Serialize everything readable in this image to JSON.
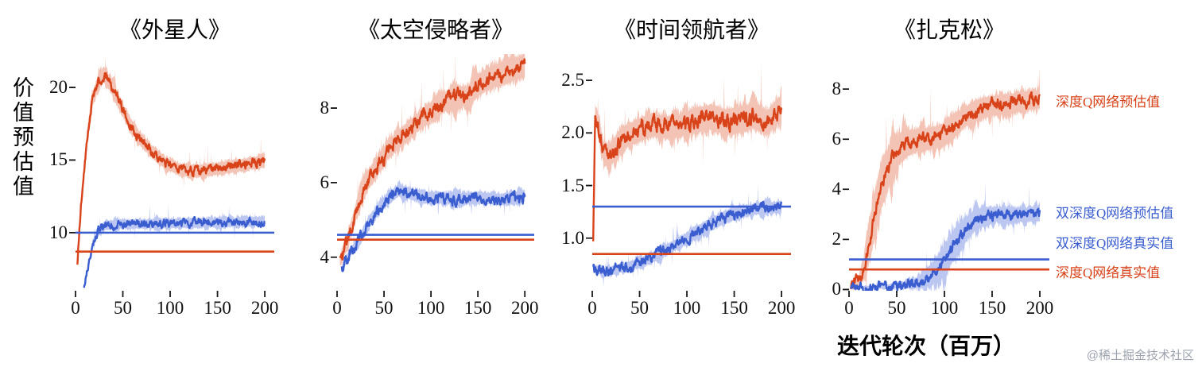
{
  "figure": {
    "ylabel": "价值预估值",
    "xlabel": "迭代轮次（百万）",
    "watermark": "@稀土掘金技术社区"
  },
  "colors": {
    "red": "#d8431a",
    "red_band": "rgba(221,86,45,0.35)",
    "blue": "#3a5dd0",
    "blue_band": "rgba(92,118,222,0.42)"
  },
  "legend": [
    {
      "label": "深度Q网络预估值",
      "color_key": "red"
    },
    {
      "label": "双深度Q网络预估值",
      "color_key": "blue"
    },
    {
      "label": "双深度Q网络真实值",
      "color_key": "blue"
    },
    {
      "label": "深度Q网络真实值",
      "color_key": "red"
    }
  ],
  "chart_data": [
    {
      "type": "line",
      "title": "《外星人》",
      "xlim": [
        0,
        210
      ],
      "ylim": [
        6.0,
        22.3
      ],
      "xticks": [
        0,
        50,
        100,
        150,
        200
      ],
      "xtick_labels": [
        "0",
        "50",
        "100",
        "150",
        "200"
      ],
      "yticks": [
        10,
        15,
        20
      ],
      "ytick_labels": [
        "10",
        "15",
        "20"
      ],
      "series": [
        {
          "name": "深度Q网络预估值",
          "color": "red",
          "jitter": 0.4,
          "points": [
            [
              2,
              8.0,
              0.3
            ],
            [
              6,
              12.0,
              0.6
            ],
            [
              12,
              16.5,
              0.8
            ],
            [
              18,
              19.2,
              0.9
            ],
            [
              25,
              20.5,
              1.0
            ],
            [
              30,
              20.9,
              1.0
            ],
            [
              38,
              20.1,
              1.0
            ],
            [
              50,
              18.4,
              0.9
            ],
            [
              65,
              16.7,
              0.9
            ],
            [
              80,
              15.6,
              0.85
            ],
            [
              95,
              14.8,
              0.8
            ],
            [
              110,
              14.35,
              0.8
            ],
            [
              130,
              14.2,
              0.8
            ],
            [
              150,
              14.4,
              0.8
            ],
            [
              170,
              14.6,
              0.8
            ],
            [
              200,
              14.9,
              0.8
            ]
          ]
        },
        {
          "name": "双深度Q网络预估值",
          "color": "blue",
          "jitter": 0.35,
          "points": [
            [
              9,
              6.2,
              0.2
            ],
            [
              13,
              7.6,
              0.35
            ],
            [
              18,
              9.2,
              0.5
            ],
            [
              24,
              10.1,
              0.55
            ],
            [
              32,
              10.5,
              0.6
            ],
            [
              50,
              10.6,
              0.6
            ],
            [
              80,
              10.6,
              0.6
            ],
            [
              120,
              10.65,
              0.6
            ],
            [
              160,
              10.7,
              0.6
            ],
            [
              200,
              10.8,
              0.6
            ]
          ]
        }
      ],
      "hlines": [
        {
          "name": "双深度Q网络真实值",
          "y": 10.0,
          "color": "blue"
        },
        {
          "name": "深度Q网络真实值",
          "y": 8.7,
          "color": "red"
        }
      ]
    },
    {
      "type": "line",
      "title": "《太空侵略者》",
      "xlim": [
        0,
        210
      ],
      "ylim": [
        3.1,
        9.45
      ],
      "xticks": [
        0,
        50,
        100,
        150,
        200
      ],
      "xtick_labels": [
        "0",
        "50",
        "100",
        "150",
        "200"
      ],
      "yticks": [
        4,
        6,
        8
      ],
      "ytick_labels": [
        "4",
        "6",
        "8"
      ],
      "series": [
        {
          "name": "深度Q网络预估值",
          "color": "red",
          "jitter": 0.22,
          "points": [
            [
              3,
              3.9,
              0.25
            ],
            [
              10,
              4.35,
              0.35
            ],
            [
              20,
              5.2,
              0.45
            ],
            [
              30,
              5.95,
              0.5
            ],
            [
              42,
              6.4,
              0.5
            ],
            [
              55,
              6.9,
              0.5
            ],
            [
              70,
              7.25,
              0.5
            ],
            [
              85,
              7.6,
              0.5
            ],
            [
              100,
              7.9,
              0.5
            ],
            [
              112,
              8.1,
              0.5
            ],
            [
              124,
              8.35,
              0.55
            ],
            [
              138,
              8.3,
              0.55
            ],
            [
              152,
              8.65,
              0.6
            ],
            [
              166,
              8.85,
              0.6
            ],
            [
              180,
              8.95,
              0.6
            ],
            [
              200,
              9.15,
              0.6
            ]
          ]
        },
        {
          "name": "双深度Q网络预估值",
          "color": "blue",
          "jitter": 0.18,
          "points": [
            [
              5,
              3.65,
              0.15
            ],
            [
              12,
              4.05,
              0.2
            ],
            [
              20,
              4.35,
              0.25
            ],
            [
              28,
              4.65,
              0.3
            ],
            [
              36,
              5.0,
              0.3
            ],
            [
              46,
              5.35,
              0.3
            ],
            [
              56,
              5.6,
              0.32
            ],
            [
              66,
              5.8,
              0.32
            ],
            [
              78,
              5.7,
              0.3
            ],
            [
              92,
              5.6,
              0.3
            ],
            [
              110,
              5.6,
              0.3
            ],
            [
              130,
              5.55,
              0.3
            ],
            [
              150,
              5.6,
              0.3
            ],
            [
              175,
              5.55,
              0.3
            ],
            [
              200,
              5.65,
              0.3
            ]
          ]
        }
      ],
      "hlines": [
        {
          "name": "双深度Q网络真实值",
          "y": 4.6,
          "color": "blue"
        },
        {
          "name": "深度Q网络真实值",
          "y": 4.47,
          "color": "red"
        }
      ]
    },
    {
      "type": "line",
      "title": "《时间领航者》",
      "xlim": [
        0,
        210
      ],
      "ylim": [
        0.5,
        2.75
      ],
      "xticks": [
        0,
        50,
        100,
        150,
        200
      ],
      "xtick_labels": [
        "0",
        "50",
        "100",
        "150",
        "200"
      ],
      "yticks": [
        1.0,
        1.5,
        2.0,
        2.5
      ],
      "ytick_labels": [
        "1.0",
        "1.5",
        "2.0",
        "2.5"
      ],
      "series": [
        {
          "name": "深度Q网络预估值",
          "color": "red",
          "jitter": 0.09,
          "points": [
            [
              1,
              0.95,
              0.1
            ],
            [
              3,
              2.2,
              0.15
            ],
            [
              7,
              2.05,
              0.2
            ],
            [
              12,
              1.8,
              0.22
            ],
            [
              18,
              1.78,
              0.22
            ],
            [
              26,
              1.88,
              0.22
            ],
            [
              36,
              1.97,
              0.22
            ],
            [
              50,
              2.03,
              0.22
            ],
            [
              65,
              2.08,
              0.22
            ],
            [
              80,
              2.05,
              0.22
            ],
            [
              95,
              2.08,
              0.22
            ],
            [
              110,
              2.12,
              0.24
            ],
            [
              125,
              2.15,
              0.24
            ],
            [
              140,
              2.1,
              0.24
            ],
            [
              155,
              2.12,
              0.24
            ],
            [
              170,
              2.16,
              0.24
            ],
            [
              185,
              2.1,
              0.24
            ],
            [
              200,
              2.25,
              0.24
            ]
          ]
        },
        {
          "name": "双深度Q网络预估值",
          "color": "blue",
          "jitter": 0.06,
          "points": [
            [
              1,
              0.72,
              0.06
            ],
            [
              12,
              0.68,
              0.07
            ],
            [
              25,
              0.7,
              0.08
            ],
            [
              40,
              0.74,
              0.08
            ],
            [
              55,
              0.78,
              0.09
            ],
            [
              70,
              0.85,
              0.1
            ],
            [
              85,
              0.92,
              0.1
            ],
            [
              100,
              1.0,
              0.11
            ],
            [
              112,
              1.06,
              0.12
            ],
            [
              125,
              1.13,
              0.12
            ],
            [
              138,
              1.19,
              0.12
            ],
            [
              150,
              1.23,
              0.11
            ],
            [
              162,
              1.26,
              0.1
            ],
            [
              175,
              1.28,
              0.1
            ],
            [
              200,
              1.3,
              0.1
            ]
          ]
        }
      ],
      "hlines": [
        {
          "name": "双深度Q网络真实值",
          "y": 1.3,
          "color": "blue"
        },
        {
          "name": "深度Q网络真实值",
          "y": 0.85,
          "color": "red"
        }
      ]
    },
    {
      "type": "line",
      "title": "《扎克松》",
      "xlim": [
        0,
        210
      ],
      "ylim": [
        -0.05,
        9.4
      ],
      "xticks": [
        0,
        50,
        100,
        150,
        200
      ],
      "xtick_labels": [
        "0",
        "50",
        "100",
        "150",
        "200"
      ],
      "yticks": [
        0,
        2,
        4,
        6,
        8
      ],
      "ytick_labels": [
        "0",
        "2",
        "4",
        "6",
        "8"
      ],
      "series": [
        {
          "name": "深度Q网络预估值",
          "color": "red",
          "jitter": 0.3,
          "points": [
            [
              2,
              0.15,
              0.2
            ],
            [
              10,
              0.35,
              0.4
            ],
            [
              16,
              0.9,
              0.9
            ],
            [
              22,
              2.0,
              1.6
            ],
            [
              28,
              3.2,
              1.9
            ],
            [
              35,
              4.3,
              1.9
            ],
            [
              45,
              5.2,
              1.6
            ],
            [
              55,
              5.7,
              1.2
            ],
            [
              65,
              5.9,
              1.0
            ],
            [
              80,
              6.0,
              0.9
            ],
            [
              95,
              6.1,
              0.9
            ],
            [
              108,
              6.4,
              0.9
            ],
            [
              118,
              6.8,
              0.85
            ],
            [
              130,
              7.1,
              0.8
            ],
            [
              145,
              7.3,
              0.8
            ],
            [
              165,
              7.4,
              0.8
            ],
            [
              185,
              7.5,
              0.75
            ],
            [
              200,
              7.6,
              0.7
            ]
          ]
        },
        {
          "name": "双深度Q网络预估值",
          "color": "blue",
          "jitter": 0.25,
          "points": [
            [
              2,
              0.06,
              0.08
            ],
            [
              30,
              0.1,
              0.12
            ],
            [
              55,
              0.15,
              0.2
            ],
            [
              70,
              0.25,
              0.4
            ],
            [
              82,
              0.45,
              0.7
            ],
            [
              92,
              0.8,
              1.0
            ],
            [
              102,
              1.3,
              1.2
            ],
            [
              112,
              1.9,
              1.2
            ],
            [
              122,
              2.4,
              1.0
            ],
            [
              132,
              2.75,
              0.8
            ],
            [
              142,
              2.9,
              0.7
            ],
            [
              155,
              3.0,
              0.6
            ],
            [
              170,
              2.95,
              0.6
            ],
            [
              185,
              3.0,
              0.55
            ],
            [
              200,
              3.0,
              0.55
            ]
          ]
        }
      ],
      "hlines": [
        {
          "name": "双深度Q网络真实值",
          "y": 1.2,
          "color": "blue"
        },
        {
          "name": "深度Q网络真实值",
          "y": 0.8,
          "color": "red"
        }
      ]
    }
  ]
}
